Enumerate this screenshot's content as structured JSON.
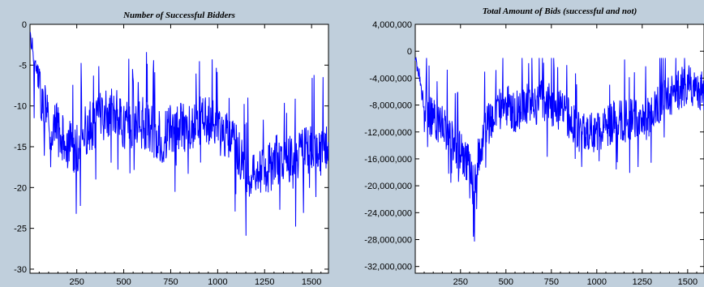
{
  "chart_data": [
    {
      "type": "line",
      "title": "Number of Successful Bidders",
      "xlabel": "",
      "ylabel": "",
      "xlim": [
        1,
        1590
      ],
      "ylim": [
        -30.5,
        0
      ],
      "x_ticks": [
        250,
        500,
        750,
        1000,
        1250,
        1500
      ],
      "y_ticks": [
        0,
        -5,
        -10,
        -15,
        -20,
        -25,
        -30
      ],
      "y_tick_labels": [
        "0",
        "-5",
        "-10",
        "-15",
        "-20",
        "-25",
        "-30"
      ],
      "grid": false,
      "legend": "none",
      "color": "#0000ff",
      "series_outline": [
        {
          "x": 1,
          "y": -1
        },
        {
          "x": 30,
          "y": -5
        },
        {
          "x": 60,
          "y": -9
        },
        {
          "x": 100,
          "y": -12
        },
        {
          "x": 150,
          "y": -13
        },
        {
          "x": 200,
          "y": -15
        },
        {
          "x": 250,
          "y": -15
        },
        {
          "x": 300,
          "y": -13
        },
        {
          "x": 350,
          "y": -12
        },
        {
          "x": 400,
          "y": -11
        },
        {
          "x": 450,
          "y": -11
        },
        {
          "x": 500,
          "y": -12
        },
        {
          "x": 550,
          "y": -13
        },
        {
          "x": 600,
          "y": -12
        },
        {
          "x": 650,
          "y": -13
        },
        {
          "x": 700,
          "y": -14
        },
        {
          "x": 750,
          "y": -13
        },
        {
          "x": 800,
          "y": -12
        },
        {
          "x": 850,
          "y": -13
        },
        {
          "x": 900,
          "y": -12
        },
        {
          "x": 950,
          "y": -12
        },
        {
          "x": 1000,
          "y": -13
        },
        {
          "x": 1050,
          "y": -14
        },
        {
          "x": 1100,
          "y": -15
        },
        {
          "x": 1150,
          "y": -18
        },
        {
          "x": 1200,
          "y": -18
        },
        {
          "x": 1250,
          "y": -18
        },
        {
          "x": 1300,
          "y": -17
        },
        {
          "x": 1350,
          "y": -16
        },
        {
          "x": 1400,
          "y": -17
        },
        {
          "x": 1450,
          "y": -16
        },
        {
          "x": 1500,
          "y": -15
        },
        {
          "x": 1550,
          "y": -16
        },
        {
          "x": 1590,
          "y": -15
        }
      ]
    },
    {
      "type": "line",
      "title": "Total Amount of Bids (successful and not)",
      "xlabel": "",
      "ylabel": "",
      "xlim": [
        1,
        1590
      ],
      "ylim": [
        -33000000,
        4000000
      ],
      "x_ticks": [
        250,
        500,
        750,
        1000,
        1250,
        1500
      ],
      "y_ticks": [
        4000000,
        0,
        -4000000,
        -8000000,
        -12000000,
        -16000000,
        -20000000,
        -24000000,
        -28000000,
        -32000000
      ],
      "y_tick_labels": [
        "4,000,000",
        "0",
        "-4,000,000",
        "-8,000,000",
        "-12,000,000",
        "-16,000,000",
        "-20,000,000",
        "-24,000,000",
        "-28,000,000",
        "-32,000,000"
      ],
      "grid": false,
      "legend": "none",
      "color": "#0000ff",
      "series_outline": [
        {
          "x": 1,
          "y": -1500000
        },
        {
          "x": 20,
          "y": -3000000
        },
        {
          "x": 50,
          "y": -9000000
        },
        {
          "x": 100,
          "y": -10000000
        },
        {
          "x": 150,
          "y": -11000000
        },
        {
          "x": 200,
          "y": -13000000
        },
        {
          "x": 250,
          "y": -15000000
        },
        {
          "x": 300,
          "y": -17000000
        },
        {
          "x": 325,
          "y": -21000000
        },
        {
          "x": 350,
          "y": -15000000
        },
        {
          "x": 400,
          "y": -11000000
        },
        {
          "x": 450,
          "y": -9000000
        },
        {
          "x": 500,
          "y": -8000000
        },
        {
          "x": 550,
          "y": -9000000
        },
        {
          "x": 600,
          "y": -8000000
        },
        {
          "x": 650,
          "y": -8000000
        },
        {
          "x": 700,
          "y": -7500000
        },
        {
          "x": 750,
          "y": -8000000
        },
        {
          "x": 800,
          "y": -9000000
        },
        {
          "x": 850,
          "y": -10000000
        },
        {
          "x": 900,
          "y": -12000000
        },
        {
          "x": 950,
          "y": -12500000
        },
        {
          "x": 1000,
          "y": -12000000
        },
        {
          "x": 1050,
          "y": -11500000
        },
        {
          "x": 1100,
          "y": -10000000
        },
        {
          "x": 1150,
          "y": -10500000
        },
        {
          "x": 1200,
          "y": -10000000
        },
        {
          "x": 1250,
          "y": -11000000
        },
        {
          "x": 1300,
          "y": -9000000
        },
        {
          "x": 1350,
          "y": -7500000
        },
        {
          "x": 1400,
          "y": -6500000
        },
        {
          "x": 1450,
          "y": -5500000
        },
        {
          "x": 1500,
          "y": -5000000
        },
        {
          "x": 1550,
          "y": -5500000
        },
        {
          "x": 1590,
          "y": -6000000
        }
      ]
    }
  ]
}
